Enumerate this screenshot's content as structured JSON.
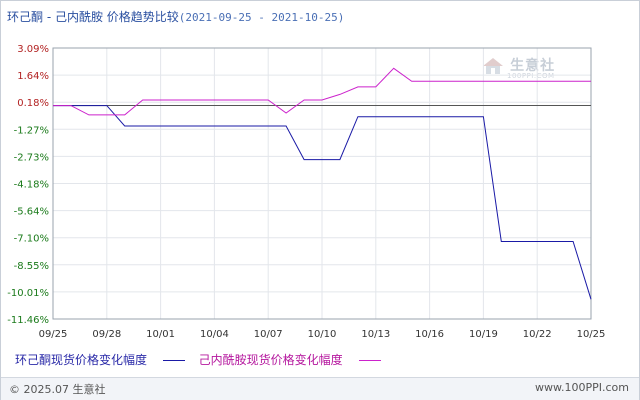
{
  "title": {
    "main": "环己酮 - 己内酰胺 价格趋势比较",
    "range": "(2021-09-25 - 2021-10-25)"
  },
  "watermark": {
    "name": "生意社",
    "sub": "100PPI.COM"
  },
  "legend": {
    "series1": "环己酮现货价格变化幅度",
    "series2": "己内酰胺现货价格变化幅度"
  },
  "footer": {
    "copyright": "© 2025.07 生意社",
    "site": "www.100PPI.com"
  },
  "colors": {
    "series1": "#1a1aa6",
    "series2": "#cc22cc",
    "pos_tick": "#b22222",
    "neg_tick": "#1a7a1a"
  },
  "chart_data": {
    "type": "line",
    "x_start": "2021-09-25",
    "x_end": "2021-10-25",
    "x_ticks": [
      "09/25",
      "09/28",
      "10/01",
      "10/04",
      "10/07",
      "10/10",
      "10/13",
      "10/16",
      "10/19",
      "10/22",
      "10/25"
    ],
    "y_ticks": [
      "3.09%",
      "1.64%",
      "0.18%",
      "-1.27%",
      "-2.73%",
      "-4.18%",
      "-5.64%",
      "-7.10%",
      "-8.55%",
      "-10.01%",
      "-11.46%"
    ],
    "ylim": [
      -11.46,
      3.09
    ],
    "grid": true,
    "legend_position": "bottom",
    "series": [
      {
        "name": "环己酮现货价格变化幅度",
        "points": [
          [
            "2021-09-25",
            0
          ],
          [
            "2021-09-26",
            0
          ],
          [
            "2021-09-27",
            0
          ],
          [
            "2021-09-28",
            0
          ],
          [
            "2021-09-29",
            -1.1
          ],
          [
            "2021-09-30",
            -1.1
          ],
          [
            "2021-10-01",
            -1.1
          ],
          [
            "2021-10-02",
            -1.1
          ],
          [
            "2021-10-03",
            -1.1
          ],
          [
            "2021-10-04",
            -1.1
          ],
          [
            "2021-10-05",
            -1.1
          ],
          [
            "2021-10-06",
            -1.1
          ],
          [
            "2021-10-07",
            -1.1
          ],
          [
            "2021-10-08",
            -1.1
          ],
          [
            "2021-10-09",
            -2.9
          ],
          [
            "2021-10-10",
            -2.9
          ],
          [
            "2021-10-11",
            -2.9
          ],
          [
            "2021-10-12",
            -0.6
          ],
          [
            "2021-10-13",
            -0.6
          ],
          [
            "2021-10-14",
            -0.6
          ],
          [
            "2021-10-15",
            -0.6
          ],
          [
            "2021-10-16",
            -0.6
          ],
          [
            "2021-10-17",
            -0.6
          ],
          [
            "2021-10-18",
            -0.6
          ],
          [
            "2021-10-19",
            -0.6
          ],
          [
            "2021-10-20",
            -7.3
          ],
          [
            "2021-10-21",
            -7.3
          ],
          [
            "2021-10-22",
            -7.3
          ],
          [
            "2021-10-23",
            -7.3
          ],
          [
            "2021-10-24",
            -7.3
          ],
          [
            "2021-10-25",
            -10.4
          ]
        ]
      },
      {
        "name": "己内酰胺现货价格变化幅度",
        "points": [
          [
            "2021-09-25",
            0
          ],
          [
            "2021-09-26",
            0
          ],
          [
            "2021-09-27",
            -0.5
          ],
          [
            "2021-09-28",
            -0.5
          ],
          [
            "2021-09-29",
            -0.5
          ],
          [
            "2021-09-30",
            0.3
          ],
          [
            "2021-10-01",
            0.3
          ],
          [
            "2021-10-02",
            0.3
          ],
          [
            "2021-10-03",
            0.3
          ],
          [
            "2021-10-04",
            0.3
          ],
          [
            "2021-10-05",
            0.3
          ],
          [
            "2021-10-06",
            0.3
          ],
          [
            "2021-10-07",
            0.3
          ],
          [
            "2021-10-08",
            -0.4
          ],
          [
            "2021-10-09",
            0.3
          ],
          [
            "2021-10-10",
            0.3
          ],
          [
            "2021-10-11",
            0.6
          ],
          [
            "2021-10-12",
            1.0
          ],
          [
            "2021-10-13",
            1.0
          ],
          [
            "2021-10-14",
            2.0
          ],
          [
            "2021-10-15",
            1.3
          ],
          [
            "2021-10-16",
            1.3
          ],
          [
            "2021-10-17",
            1.3
          ],
          [
            "2021-10-18",
            1.3
          ],
          [
            "2021-10-19",
            1.3
          ],
          [
            "2021-10-20",
            1.3
          ],
          [
            "2021-10-21",
            1.3
          ],
          [
            "2021-10-22",
            1.3
          ],
          [
            "2021-10-23",
            1.3
          ],
          [
            "2021-10-24",
            1.3
          ],
          [
            "2021-10-25",
            1.3
          ]
        ]
      }
    ]
  }
}
